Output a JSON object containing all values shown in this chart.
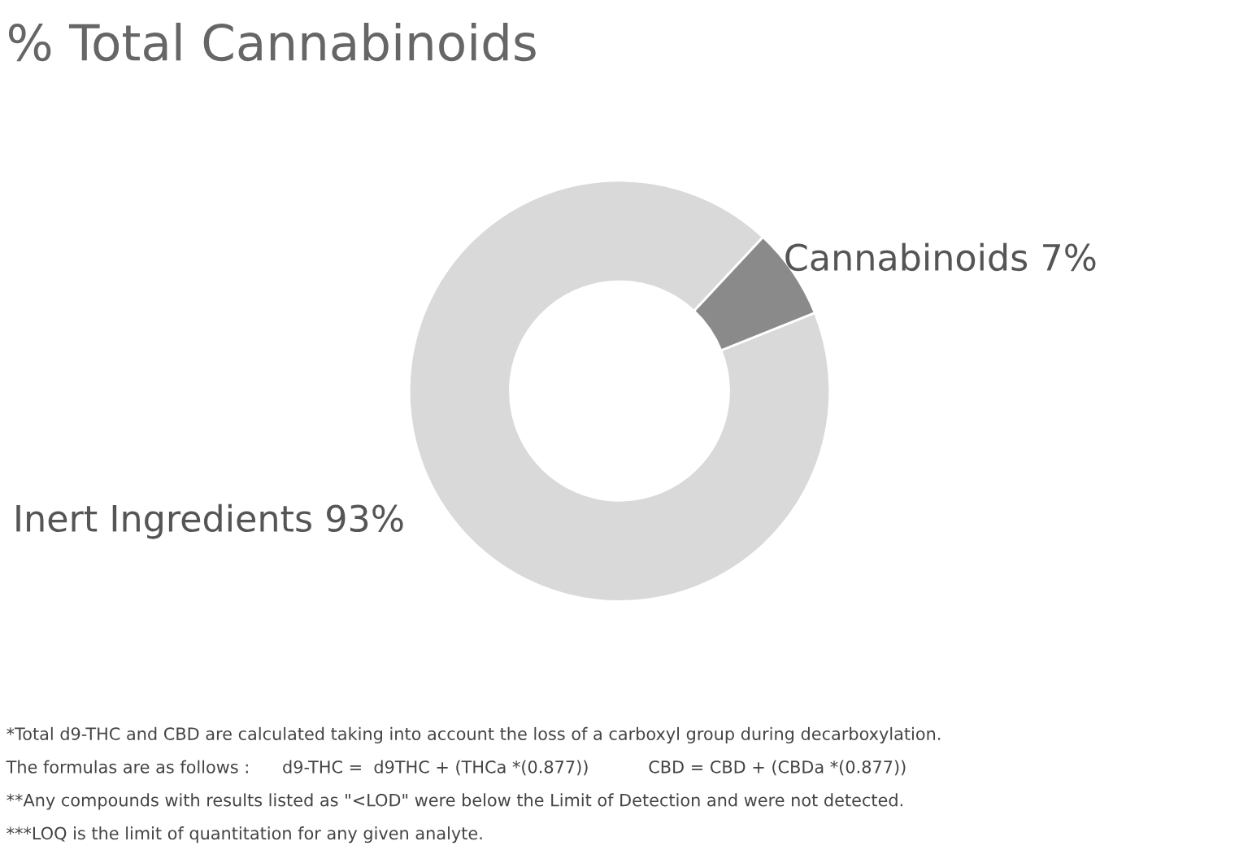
{
  "chart_data": {
    "type": "donut",
    "title": "% Total Cannabinoids",
    "categories": [
      "Inert Ingredients",
      "Cannabinoids"
    ],
    "values": [
      93,
      7
    ],
    "colors": [
      "#d9d9d9",
      "#8a8a8a"
    ],
    "value_labels": [
      "93%",
      "7%"
    ],
    "annotations": [
      "*Total d9-THC and CBD are calculated taking into account the loss of a carboxyl group during decarboxylation.",
      "The formulas are as follows :      d9-THC =  d9THC + (THCa *(0.877))           CBD = CBD + (CBDa *(0.877))",
      "**Any compounds with results listed as \"<LOD\" were below the Limit of Detection and were not detected.",
      "***LOQ is the limit of quantitation for any given analyte."
    ]
  }
}
